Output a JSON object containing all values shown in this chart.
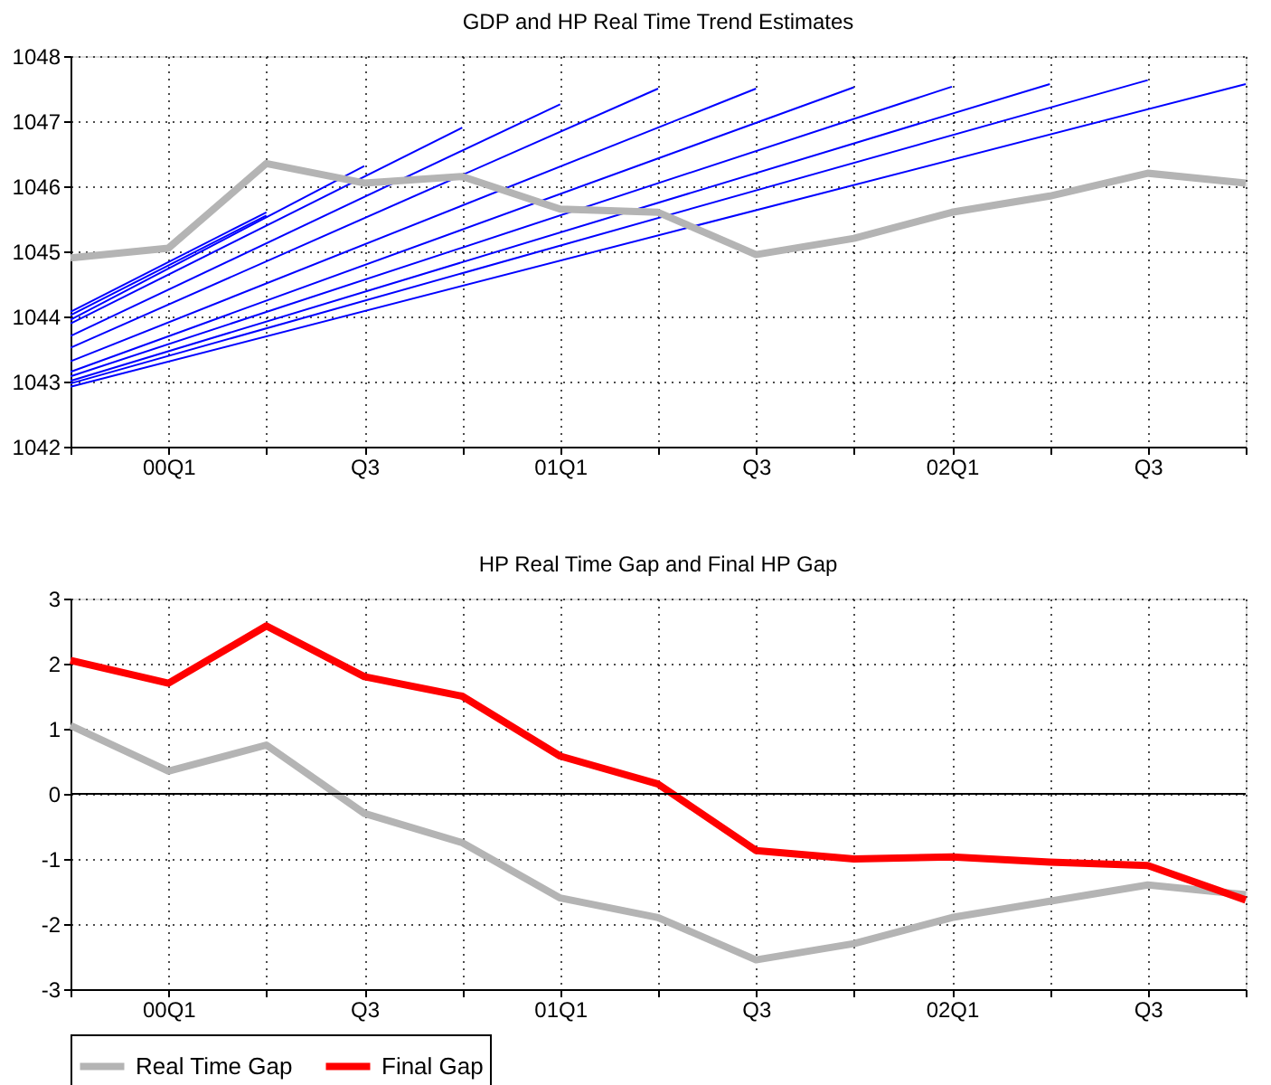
{
  "chart_data": [
    {
      "type": "line",
      "title": "GDP and HP Real Time Trend Estimates",
      "categories": [
        null,
        "00Q1",
        null,
        "Q3",
        null,
        "01Q1",
        null,
        "Q3",
        null,
        "02Q1",
        null,
        "Q3",
        null
      ],
      "ylim": [
        1042,
        1048
      ],
      "yticks": [
        1042,
        1043,
        1044,
        1045,
        1046,
        1047,
        1048
      ],
      "grid": true,
      "legend": false,
      "series": [
        {
          "color": "#0000ff",
          "values": [
            1044.07,
            null,
            1045.6,
            null,
            null,
            null,
            null,
            null,
            null,
            null,
            null,
            null,
            null
          ]
        },
        {
          "color": "#0000ff",
          "values": [
            1044.02,
            null,
            1045.55,
            null,
            null,
            null,
            null,
            null,
            null,
            null,
            null,
            null,
            null
          ]
        },
        {
          "color": "#0000ff",
          "values": [
            1043.95,
            null,
            null,
            1046.31,
            null,
            null,
            null,
            null,
            null,
            null,
            null,
            null,
            null
          ]
        },
        {
          "color": "#0000ff",
          "values": [
            1043.89,
            null,
            null,
            null,
            1046.9,
            null,
            null,
            null,
            null,
            null,
            null,
            null,
            null
          ]
        },
        {
          "color": "#0000ff",
          "values": [
            1043.7,
            null,
            null,
            null,
            null,
            1047.26,
            null,
            null,
            null,
            null,
            null,
            null,
            null
          ]
        },
        {
          "color": "#0000ff",
          "values": [
            1043.52,
            null,
            null,
            null,
            null,
            null,
            1047.5,
            null,
            null,
            null,
            null,
            null,
            null
          ]
        },
        {
          "color": "#0000ff",
          "values": [
            1043.31,
            null,
            null,
            null,
            null,
            null,
            null,
            1047.5,
            null,
            null,
            null,
            null,
            null
          ]
        },
        {
          "color": "#0000ff",
          "values": [
            1043.15,
            null,
            null,
            null,
            null,
            null,
            null,
            null,
            1047.52,
            null,
            null,
            null,
            null
          ]
        },
        {
          "color": "#0000ff",
          "values": [
            1043.08,
            null,
            null,
            null,
            null,
            null,
            null,
            null,
            null,
            1047.53,
            null,
            null,
            null
          ]
        },
        {
          "color": "#0000ff",
          "values": [
            1043.01,
            null,
            null,
            null,
            null,
            null,
            null,
            null,
            null,
            null,
            1047.57,
            null,
            null
          ]
        },
        {
          "color": "#0000ff",
          "values": [
            1042.97,
            null,
            null,
            null,
            null,
            null,
            null,
            null,
            null,
            null,
            null,
            1047.63,
            null
          ]
        },
        {
          "color": "#0000ff",
          "values": [
            1042.92,
            null,
            null,
            null,
            null,
            null,
            null,
            null,
            null,
            null,
            null,
            null,
            1047.57
          ]
        },
        {
          "color": "#b4b4b4",
          "values": [
            1044.9,
            1045.05,
            1046.35,
            1046.05,
            1046.15,
            1045.65,
            1045.6,
            1044.95,
            1045.2,
            1045.6,
            1045.85,
            1046.2,
            1046.05
          ]
        }
      ]
    },
    {
      "type": "line",
      "title": "HP Real Time Gap and Final HP Gap",
      "categories": [
        null,
        "00Q1",
        null,
        "Q3",
        null,
        "01Q1",
        null,
        "Q3",
        null,
        "02Q1",
        null,
        "Q3",
        null
      ],
      "ylim": [
        -3,
        3
      ],
      "yticks": [
        -3,
        -2,
        -1,
        0,
        1,
        2,
        3
      ],
      "grid": true,
      "legend": "bottom",
      "ref_lines": [
        {
          "axis": "y",
          "value": 0,
          "color": "#000000"
        }
      ],
      "series": [
        {
          "name": "Real Time Gap",
          "color": "#b4b4b4",
          "values": [
            1.05,
            0.35,
            0.75,
            -0.3,
            -0.75,
            -1.6,
            -1.9,
            -2.55,
            -2.3,
            -1.9,
            -1.65,
            -1.4,
            -1.55
          ]
        },
        {
          "name": "Final Gap",
          "color": "#ff0000",
          "values": [
            2.05,
            1.7,
            2.58,
            1.8,
            1.5,
            0.58,
            0.15,
            -0.87,
            -1.0,
            -0.97,
            -1.05,
            -1.1,
            -1.63
          ]
        }
      ]
    }
  ]
}
